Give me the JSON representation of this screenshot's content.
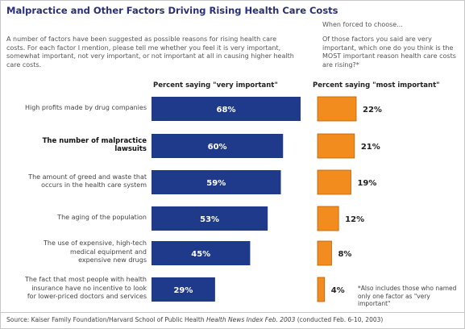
{
  "title": "Malpractice and Other Factors Driving Rising Health Care Costs",
  "question_left": "A number of factors have been suggested as possible reasons for rising health care costs. For each factor I mention, please tell me whether you feel it is very important, somewhat important, not very important, or not important at all in causing higher health care costs.",
  "question_right_lead": "When forced to choose...",
  "question_right": "Of those factors you said are very important, which one do you think is the MOST important reason health care costs are rising?*",
  "colors": {
    "very_important": "#1f3a8a",
    "most_important": "#f28c1e",
    "title": "#2a2f78"
  },
  "chart_data": {
    "type": "bar",
    "orientation": "horizontal",
    "categories": [
      "High profits made by drug companies",
      "The number of malpractice lawsuits",
      "The amount of greed and waste that occurs in the health care system",
      "The aging of the population",
      "The use of expensive, high-tech medical equipment and expensive new drugs",
      "The fact that most people with health insurance have no incentive to look for lower-priced doctors and services"
    ],
    "category_lines": [
      [
        "High profits made by drug companies"
      ],
      [
        "The number of malpractice",
        "lawsuits"
      ],
      [
        "The amount of greed and waste that",
        "occurs in the health care system"
      ],
      [
        "The aging of the population"
      ],
      [
        "The use of expensive, high-tech",
        "medical equipment and",
        "expensive new drugs"
      ],
      [
        "The fact that most people with health",
        "insurance have no incentive to look",
        "for lower-priced doctors and services"
      ]
    ],
    "highlighted_category": "The number of malpractice lawsuits",
    "series": [
      {
        "name": "Percent saying \"very important\"",
        "values": [
          68,
          60,
          59,
          53,
          45,
          29
        ],
        "labels": [
          "68%",
          "60%",
          "59%",
          "53%",
          "45%",
          "29%"
        ]
      },
      {
        "name": "Percent saying \"most important\"",
        "values": [
          22,
          21,
          19,
          12,
          8,
          4
        ],
        "labels": [
          "22%",
          "21%",
          "19%",
          "12%",
          "8%",
          "4%"
        ]
      }
    ],
    "unit": "%"
  },
  "footnote": "*Also includes those who named only one factor as \"very important\"",
  "source_prefix": "Source: Kaiser Family Foundation/Harvard School of Public Health ",
  "source_title": "Health News Index Feb. 2003",
  "source_suffix": " (conducted Feb. 6-10, 2003)"
}
